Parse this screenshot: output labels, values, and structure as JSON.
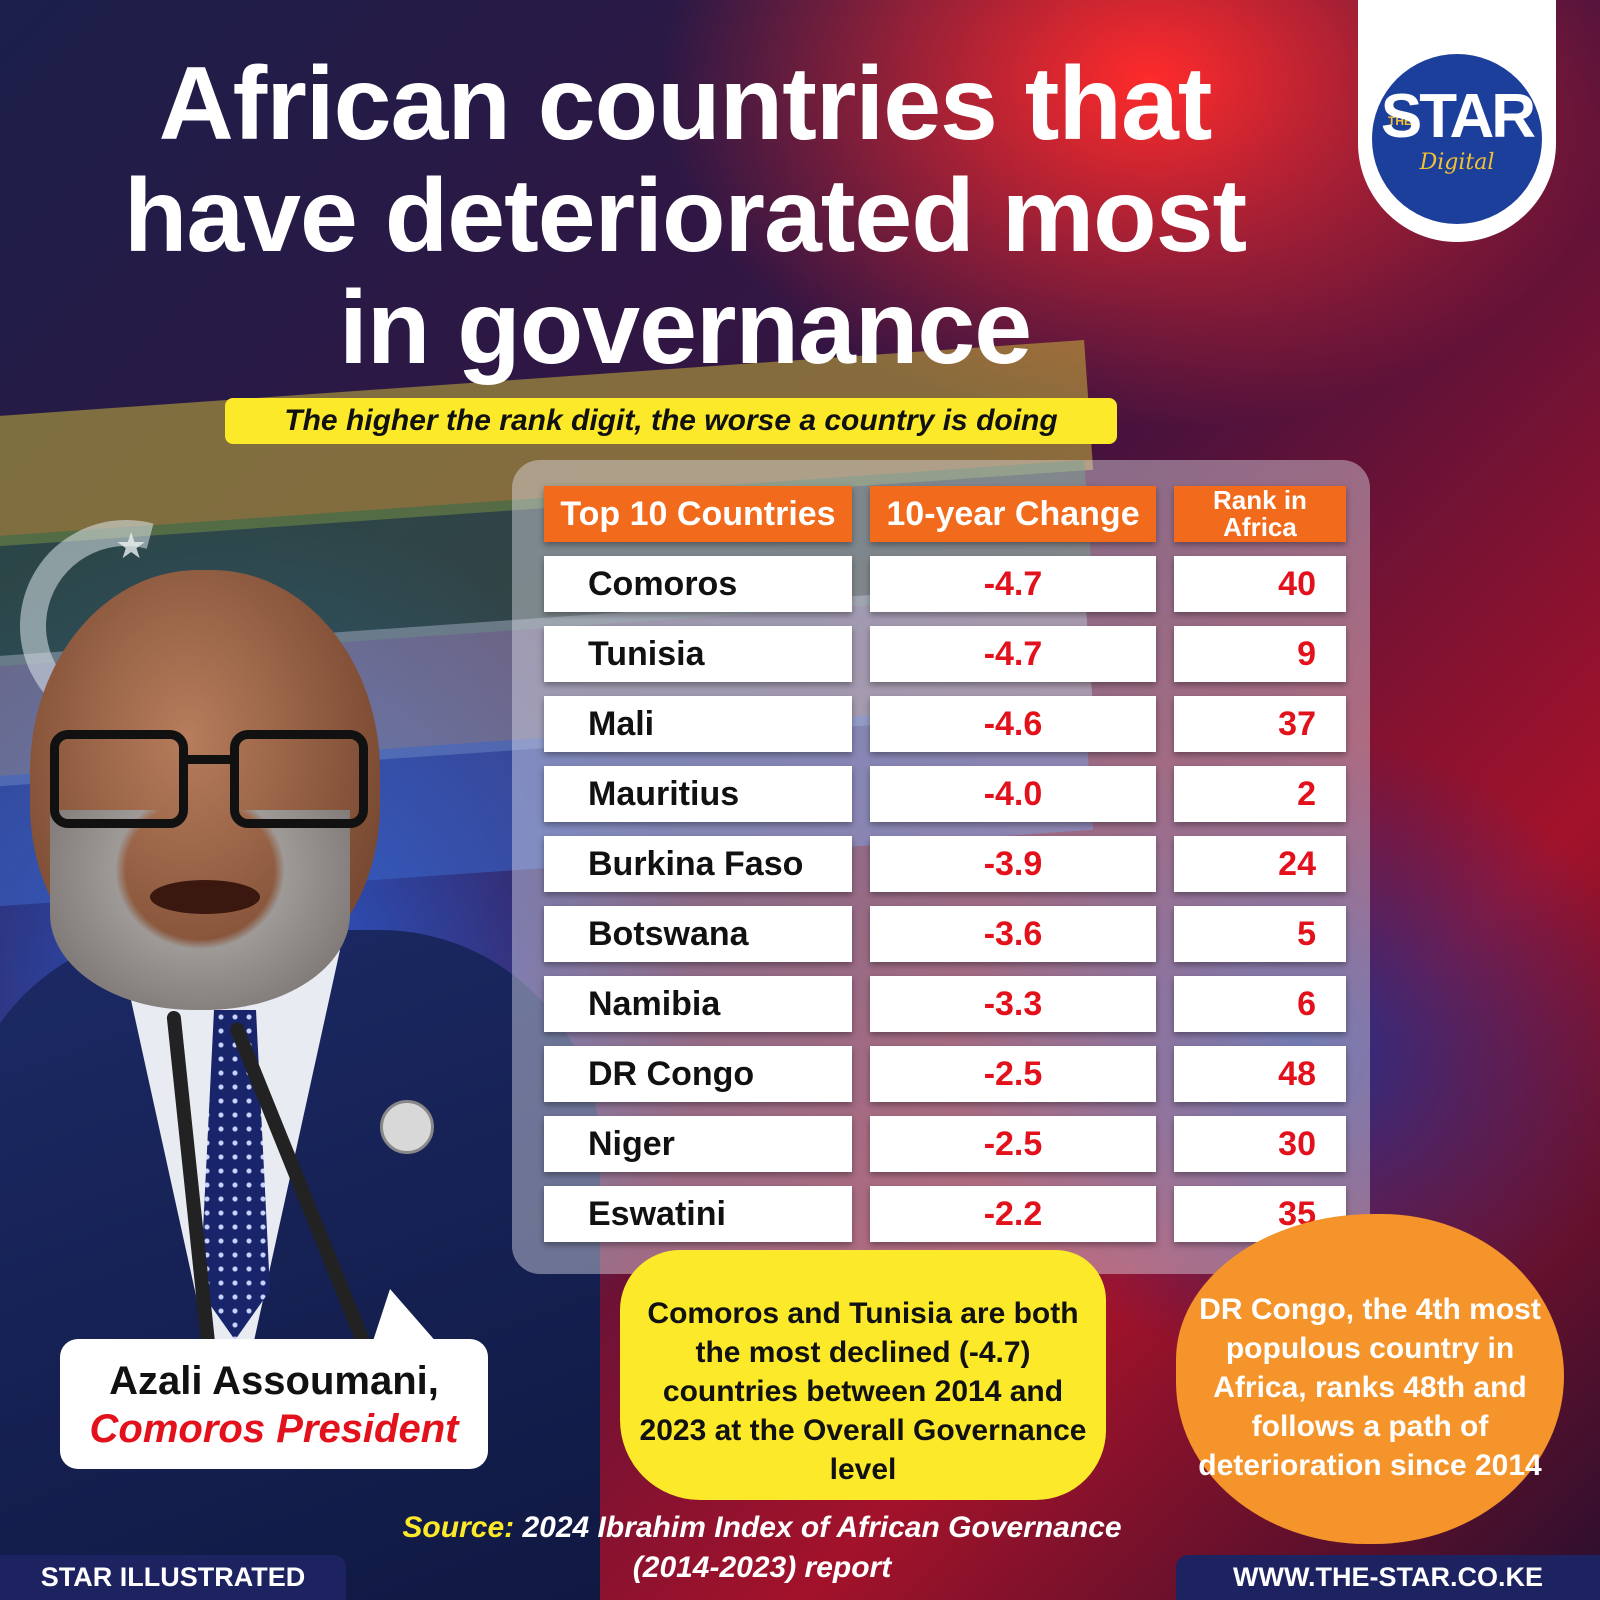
{
  "header": {
    "title": "African countries that have deteriorated most in governance",
    "subtitle": "The higher the rank digit, the worse a country is doing"
  },
  "logo": {
    "prefix": "THE",
    "name": "STAR",
    "suffix": "Digital"
  },
  "chart_data": {
    "type": "table",
    "columns": [
      "Top 10 Countries",
      "10-year Change",
      "Rank in Africa"
    ],
    "rows": [
      {
        "country": "Comoros",
        "change": "-4.7",
        "rank": "40"
      },
      {
        "country": "Tunisia",
        "change": "-4.7",
        "rank": "9"
      },
      {
        "country": "Mali",
        "change": "-4.6",
        "rank": "37"
      },
      {
        "country": "Mauritius",
        "change": "-4.0",
        "rank": "2"
      },
      {
        "country": "Burkina Faso",
        "change": "-3.9",
        "rank": "24"
      },
      {
        "country": "Botswana",
        "change": "-3.6",
        "rank": "5"
      },
      {
        "country": "Namibia",
        "change": "-3.3",
        "rank": "6"
      },
      {
        "country": "DR Congo",
        "change": "-2.5",
        "rank": "48"
      },
      {
        "country": "Niger",
        "change": "-2.5",
        "rank": "30"
      },
      {
        "country": "Eswatini",
        "change": "-2.2",
        "rank": "35"
      }
    ]
  },
  "speaker": {
    "name": "Azali Assoumani,",
    "role": "Comoros President"
  },
  "callouts": {
    "yellow": "Comoros and Tunisia are both the most declined (-4.7) countries between 2014 and 2023 at the Overall Governance level",
    "orange": "DR Congo, the 4th most populous country in Africa, ranks 48th and follows a path of deterioration since 2014"
  },
  "source": {
    "label": "Source:",
    "text": "2024 Ibrahim Index of African Governance (2014-2023) report"
  },
  "footer": {
    "left": "STAR ILLUSTRATED",
    "right": "WWW.THE-STAR.CO.KE"
  },
  "colors": {
    "accent_orange": "#f26a1b",
    "highlight_yellow": "#fbe92a",
    "value_red": "#e3111b",
    "navy": "#1d2260"
  }
}
